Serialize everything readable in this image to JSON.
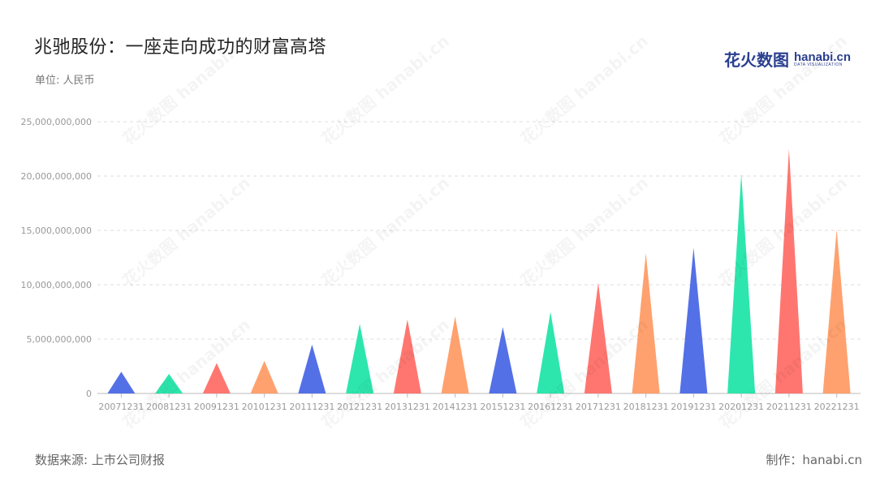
{
  "title": "兆驰股份：一座走向成功的财富高塔",
  "unit_label": "单位: 人民币",
  "source": "数据来源: 上市公司财报",
  "credit": "制作：hanabi.cn",
  "logo": {
    "cn": "花火数图",
    "en": "hanabi.cn",
    "sub": "DATA VISUALIZATION"
  },
  "watermark": "花火数图 hanabi.cn",
  "colors": [
    "#5470e6",
    "#2de6ad",
    "#ff7670",
    "#ffa16e"
  ],
  "chart_data": {
    "type": "bar",
    "bar_shape": "triangle",
    "categories": [
      "20071231",
      "20081231",
      "20091231",
      "20101231",
      "20111231",
      "20121231",
      "20131231",
      "20141231",
      "20151231",
      "20161231",
      "20171231",
      "20181231",
      "20191231",
      "20201231",
      "20211231",
      "20221231"
    ],
    "values": [
      2000000000,
      1800000000,
      2800000000,
      3000000000,
      4500000000,
      6400000000,
      6800000000,
      7100000000,
      6100000000,
      7500000000,
      10200000000,
      12900000000,
      13400000000,
      20200000000,
      22500000000,
      15100000000
    ],
    "ylim": [
      0,
      25000000000
    ],
    "yticks": [
      "0",
      "5,000,000,000",
      "10,000,000,000",
      "15,000,000,000",
      "20,000,000,000",
      "25,000,000,000"
    ],
    "ytick_values": [
      0,
      5000000000,
      10000000000,
      15000000000,
      20000000000,
      25000000000
    ],
    "grid": true,
    "legend": "none"
  }
}
